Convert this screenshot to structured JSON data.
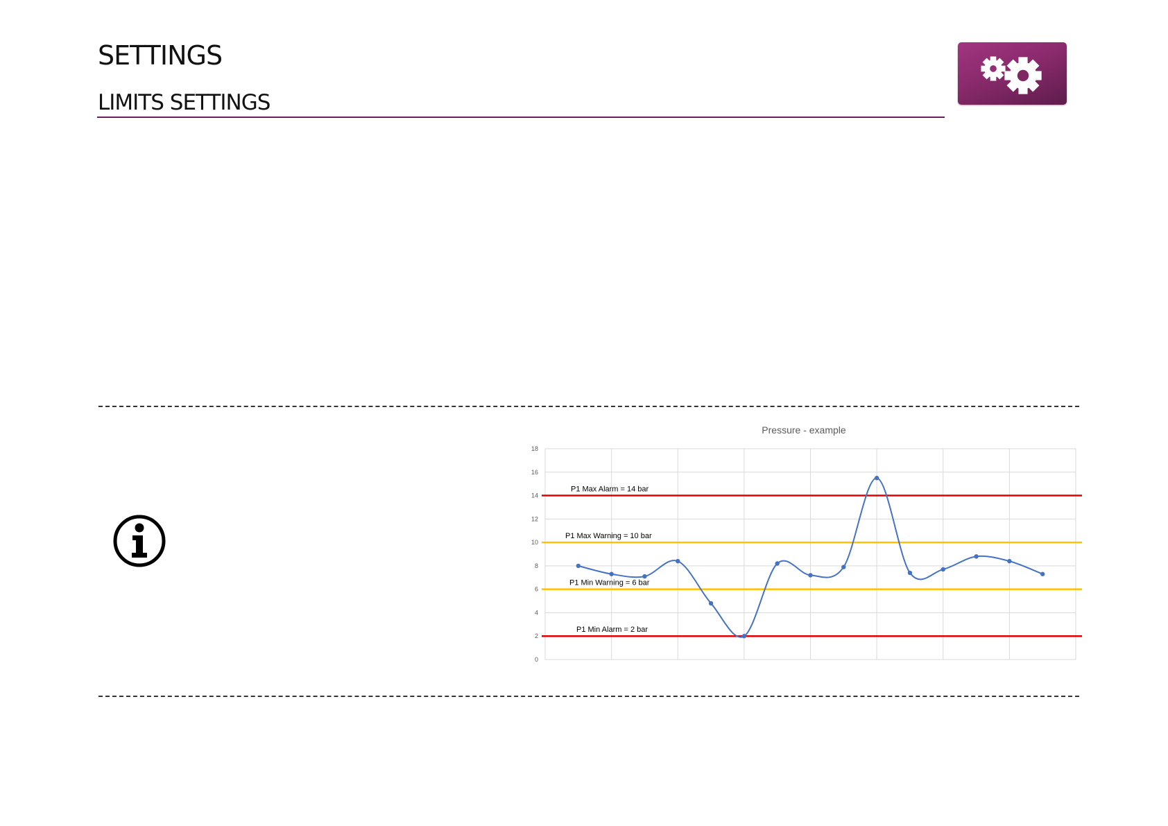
{
  "header": {
    "title": "SETTINGS",
    "subtitle": "LIMITS SETTINGS",
    "icon": "gears-icon",
    "accent_color": "#8a2a6c"
  },
  "info": {
    "icon": "info-icon"
  },
  "chart_data": {
    "type": "line",
    "title": "Pressure - example",
    "xlabel": "",
    "ylabel": "",
    "ylim": [
      0,
      18
    ],
    "yticks": [
      0,
      2,
      4,
      6,
      8,
      10,
      12,
      14,
      16,
      18
    ],
    "grid": true,
    "series": [
      {
        "values": [
          8.0,
          7.3,
          7.1,
          8.4,
          4.8,
          2.0,
          8.2,
          7.2,
          7.9,
          15.5,
          7.4,
          7.7,
          8.8,
          8.4,
          7.3
        ],
        "color": "#4472c4"
      }
    ],
    "thresholds": [
      {
        "label": "P1 Max Alarm = 14 bar",
        "value": 14,
        "color": "#e00000"
      },
      {
        "label": "P1 Max Warning = 10  bar",
        "value": 10,
        "color": "#ffc000"
      },
      {
        "label": "P1 Min Warning = 6 bar",
        "value": 6,
        "color": "#ffc000"
      },
      {
        "label": "P1 Min Alarm = 2 bar",
        "value": 2,
        "color": "#e00000"
      }
    ]
  }
}
